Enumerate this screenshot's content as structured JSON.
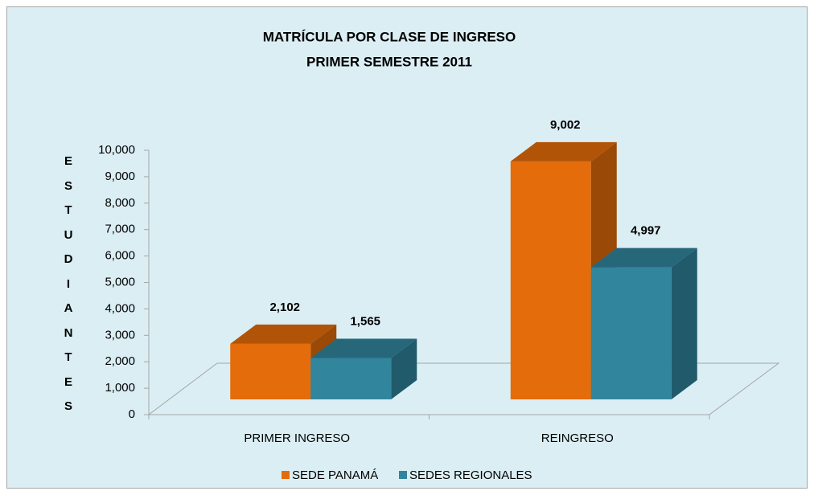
{
  "chart_data": {
    "type": "bar3d",
    "title": "MATRÍCULA POR CLASE DE INGRESO",
    "subtitle": "PRIMER SEMESTRE 2011",
    "y_label": "ESTUDIANTES",
    "categories": [
      "PRIMER INGRESO",
      "REINGRESO"
    ],
    "series": [
      {
        "name": "SEDE PANAMÁ",
        "color": "#e46c0a",
        "values": [
          2102,
          9002
        ],
        "value_labels": [
          "2,102",
          "9,002"
        ]
      },
      {
        "name": "SEDES REGIONALES",
        "color": "#31859c",
        "values": [
          1565,
          4997
        ],
        "value_labels": [
          "1,565",
          "4,997"
        ]
      }
    ],
    "ylim": [
      0,
      10000
    ],
    "yticks": [
      0,
      {
        "value": 1000,
        "label": "1,000"
      },
      {
        "value": 2000,
        "label": "2,000"
      },
      {
        "value": 3000,
        "label": "3,000"
      },
      {
        "value": 4000,
        "label": "4,000"
      },
      {
        "value": 5000,
        "label": "5,000"
      },
      {
        "value": 6000,
        "label": "6,000"
      },
      {
        "value": 7000,
        "label": "7,000"
      },
      {
        "value": 8000,
        "label": "8,000"
      },
      {
        "value": 9000,
        "label": "9,000"
      },
      {
        "value": 10000,
        "label": "10,000"
      }
    ],
    "legend": "bottom"
  }
}
